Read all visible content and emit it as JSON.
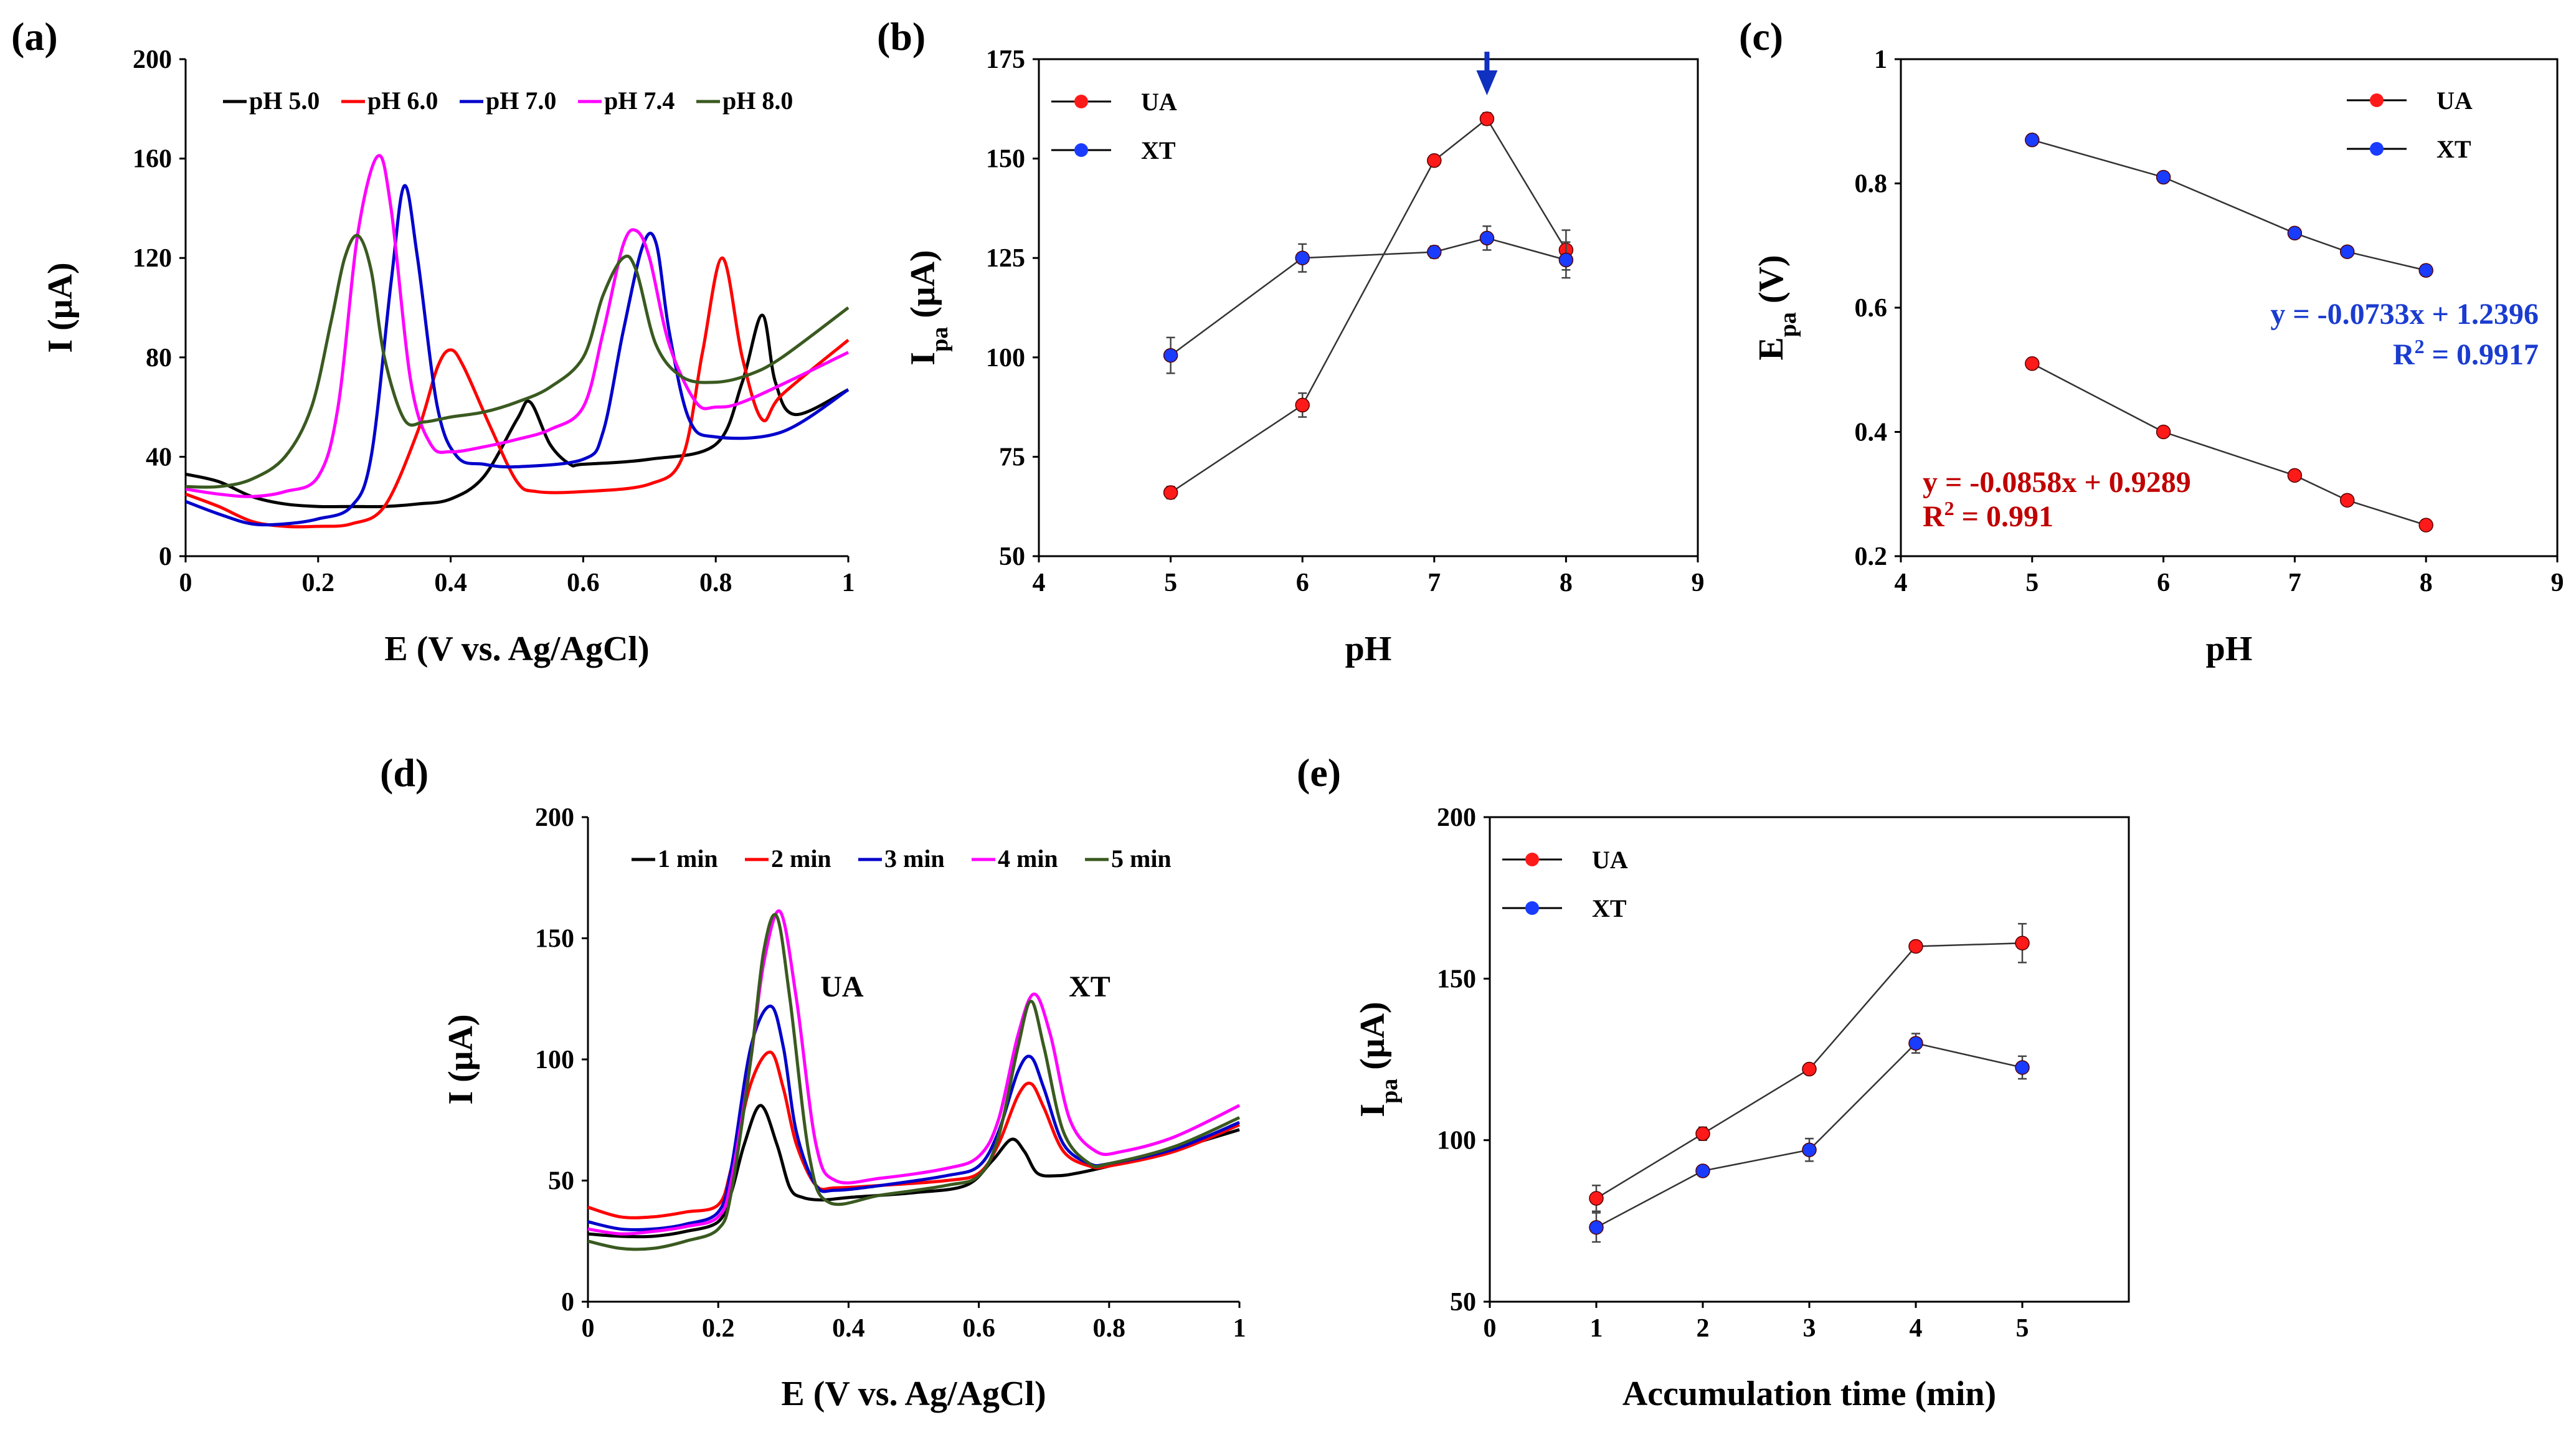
{
  "chart_data": [
    {
      "id": "a",
      "panel_label": "(a)",
      "type": "line",
      "xlabel": "E (V vs. Ag/AgCl)",
      "ylabel": "I (μA)",
      "xlim": [
        0,
        1
      ],
      "ylim": [
        0,
        200
      ],
      "xticks": [
        0,
        0.2,
        0.4,
        0.6,
        0.8,
        1
      ],
      "xtick_labels": [
        "0",
        "0.2",
        "0.4",
        "0.6",
        "0.8",
        "1"
      ],
      "yticks": [
        0,
        40,
        80,
        120,
        160,
        200
      ],
      "ytick_labels": [
        "0",
        "40",
        "80",
        "120",
        "160",
        "200"
      ],
      "legend_position": "top",
      "series": [
        {
          "name": "pH 5.0",
          "color": "#000000",
          "x": [
            0,
            0.05,
            0.1,
            0.15,
            0.2,
            0.25,
            0.3,
            0.35,
            0.4,
            0.45,
            0.5,
            0.52,
            0.55,
            0.58,
            0.6,
            0.7,
            0.8,
            0.84,
            0.87,
            0.89,
            0.92,
            1.0
          ],
          "y": [
            33,
            30,
            24,
            21,
            20,
            20,
            20,
            21,
            23,
            32,
            55,
            62,
            45,
            37,
            37,
            39,
            45,
            70,
            97,
            70,
            57,
            67
          ]
        },
        {
          "name": "pH 6.0",
          "color": "#ff0000",
          "x": [
            0,
            0.05,
            0.1,
            0.15,
            0.2,
            0.25,
            0.3,
            0.35,
            0.38,
            0.4,
            0.42,
            0.46,
            0.5,
            0.53,
            0.6,
            0.7,
            0.75,
            0.78,
            0.81,
            0.84,
            0.87,
            0.9,
            1.0
          ],
          "y": [
            25,
            20,
            14,
            12,
            12,
            13,
            20,
            50,
            76,
            83,
            76,
            52,
            30,
            26,
            26,
            29,
            40,
            82,
            120,
            80,
            55,
            65,
            87
          ]
        },
        {
          "name": "pH 7.0",
          "color": "#0000cc",
          "x": [
            0,
            0.05,
            0.1,
            0.15,
            0.2,
            0.25,
            0.28,
            0.31,
            0.33,
            0.35,
            0.38,
            0.41,
            0.45,
            0.5,
            0.6,
            0.63,
            0.66,
            0.69,
            0.71,
            0.73,
            0.76,
            0.8,
            0.9,
            1.0
          ],
          "y": [
            22,
            17,
            13,
            13,
            15,
            20,
            40,
            110,
            149,
            120,
            60,
            40,
            37,
            36,
            39,
            50,
            90,
            125,
            126,
            90,
            55,
            48,
            50,
            67
          ]
        },
        {
          "name": "pH 7.4",
          "color": "#ff00ff",
          "x": [
            0,
            0.05,
            0.1,
            0.15,
            0.2,
            0.23,
            0.26,
            0.29,
            0.31,
            0.34,
            0.37,
            0.4,
            0.45,
            0.5,
            0.55,
            0.6,
            0.63,
            0.66,
            0.68,
            0.7,
            0.73,
            0.77,
            0.8,
            0.85,
            1.0
          ],
          "y": [
            27,
            25,
            24,
            26,
            32,
            60,
            130,
            161,
            140,
            70,
            45,
            42,
            44,
            47,
            51,
            60,
            90,
            125,
            131,
            120,
            85,
            62,
            60,
            63,
            82
          ]
        },
        {
          "name": "pH 8.0",
          "color": "#3a5a20",
          "x": [
            0,
            0.05,
            0.1,
            0.15,
            0.19,
            0.22,
            0.24,
            0.26,
            0.28,
            0.3,
            0.33,
            0.36,
            0.4,
            0.45,
            0.5,
            0.55,
            0.6,
            0.63,
            0.66,
            0.68,
            0.71,
            0.75,
            0.8,
            0.85,
            0.9,
            1.0
          ],
          "y": [
            28,
            28,
            31,
            40,
            60,
            95,
            120,
            129,
            115,
            80,
            55,
            54,
            56,
            58,
            62,
            68,
            80,
            105,
            120,
            115,
            85,
            72,
            70,
            73,
            80,
            100
          ]
        }
      ]
    },
    {
      "id": "b",
      "panel_label": "(b)",
      "type": "scatter",
      "xlabel": "pH",
      "ylabel_main": "I",
      "ylabel_sub": "pa",
      "ylabel_unit": " (μA)",
      "xlim": [
        4,
        9
      ],
      "ylim": [
        50,
        175
      ],
      "xticks": [
        4,
        5,
        6,
        7,
        8,
        9
      ],
      "xtick_labels": [
        "4",
        "5",
        "6",
        "7",
        "8",
        "9"
      ],
      "yticks": [
        50,
        75,
        100,
        125,
        150,
        175
      ],
      "ytick_labels": [
        "50",
        "75",
        "100",
        "125",
        "150",
        "175"
      ],
      "legend_position": "top-left",
      "arrow_at_x": 7.4,
      "arrow_color": "#1030c0",
      "series": [
        {
          "name": "UA",
          "color": "#ff1a1a",
          "x": [
            5,
            6,
            7,
            7.4,
            8
          ],
          "y": [
            66,
            88,
            149.5,
            160,
            127
          ],
          "err": [
            1.5,
            3,
            1,
            1.5,
            5
          ]
        },
        {
          "name": "XT",
          "color": "#1a3cff",
          "x": [
            5,
            6,
            7,
            7.4,
            8
          ],
          "y": [
            100.5,
            125,
            126.5,
            130,
            124.5
          ],
          "err": [
            4.5,
            3.5,
            1.5,
            3,
            4.5
          ]
        }
      ]
    },
    {
      "id": "c",
      "panel_label": "(c)",
      "type": "scatter",
      "xlabel": "pH",
      "ylabel_main": "E",
      "ylabel_sub": "pa",
      "ylabel_unit": " (V)",
      "xlim": [
        4,
        9
      ],
      "ylim": [
        0.2,
        1.0
      ],
      "xticks": [
        4,
        5,
        6,
        7,
        8,
        9
      ],
      "xtick_labels": [
        "4",
        "5",
        "6",
        "7",
        "8",
        "9"
      ],
      "yticks": [
        0.2,
        0.4,
        0.6,
        0.8,
        1.0
      ],
      "ytick_labels": [
        "0.2",
        "0.4",
        "0.6",
        "0.8",
        "1"
      ],
      "legend_position": "top-right",
      "series": [
        {
          "name": "UA",
          "color": "#ff1a1a",
          "x": [
            5,
            6,
            7,
            7.4,
            8
          ],
          "y": [
            0.51,
            0.4,
            0.33,
            0.29,
            0.25
          ]
        },
        {
          "name": "XT",
          "color": "#1a3cff",
          "x": [
            5,
            6,
            7,
            7.4,
            8
          ],
          "y": [
            0.87,
            0.81,
            0.72,
            0.69,
            0.66
          ]
        }
      ],
      "equations": {
        "xt_fit": "y = -0.0733x + 1.2396",
        "xt_r2_prefix": "R",
        "xt_r2_value": " = 0.9917",
        "ua_fit": "y = -0.0858x + 0.9289",
        "ua_r2_prefix": "R",
        "ua_r2_value": " = 0.991",
        "r2_superscript": "2",
        "xt_color": "#1a3cd0",
        "ua_color": "#c00000"
      }
    },
    {
      "id": "d",
      "panel_label": "(d)",
      "type": "line",
      "xlabel": "E (V vs. Ag/AgCl)",
      "ylabel": "I (μA)",
      "xlim": [
        0,
        1
      ],
      "ylim": [
        0,
        200
      ],
      "xticks": [
        0,
        0.2,
        0.4,
        0.6,
        0.8,
        1
      ],
      "xtick_labels": [
        "0",
        "0.2",
        "0.4",
        "0.6",
        "0.8",
        "1"
      ],
      "yticks": [
        0,
        50,
        100,
        150,
        200
      ],
      "ytick_labels": [
        "0",
        "50",
        "100",
        "150",
        "200"
      ],
      "legend_position": "top",
      "annotations": [
        {
          "text": "UA",
          "x": 0.39,
          "y": 126
        },
        {
          "text": "XT",
          "x": 0.77,
          "y": 126
        }
      ],
      "series": [
        {
          "name": "1 min",
          "color": "#000000",
          "x": [
            0,
            0.05,
            0.1,
            0.15,
            0.2,
            0.22,
            0.24,
            0.265,
            0.29,
            0.31,
            0.33,
            0.36,
            0.4,
            0.5,
            0.58,
            0.62,
            0.65,
            0.67,
            0.69,
            0.72,
            0.75,
            0.8,
            0.9,
            1.0
          ],
          "y": [
            28,
            27,
            27,
            29,
            33,
            45,
            65,
            81,
            65,
            47,
            43,
            42,
            43,
            45,
            48,
            58,
            67,
            62,
            53,
            52,
            53,
            56,
            63,
            71
          ]
        },
        {
          "name": "2 min",
          "color": "#ff0000",
          "x": [
            0,
            0.05,
            0.1,
            0.15,
            0.2,
            0.22,
            0.25,
            0.28,
            0.3,
            0.32,
            0.35,
            0.38,
            0.45,
            0.55,
            0.6,
            0.63,
            0.66,
            0.68,
            0.7,
            0.73,
            0.77,
            0.8,
            0.9,
            1.0
          ],
          "y": [
            39,
            35,
            35,
            37,
            40,
            55,
            90,
            103,
            88,
            65,
            48,
            47,
            48,
            50,
            53,
            65,
            85,
            90,
            80,
            62,
            56,
            56,
            62,
            73
          ]
        },
        {
          "name": "3 min",
          "color": "#0000cc",
          "x": [
            0,
            0.05,
            0.1,
            0.15,
            0.2,
            0.22,
            0.25,
            0.28,
            0.3,
            0.32,
            0.35,
            0.38,
            0.45,
            0.55,
            0.6,
            0.63,
            0.66,
            0.68,
            0.7,
            0.73,
            0.77,
            0.8,
            0.9,
            1.0
          ],
          "y": [
            33,
            30,
            30,
            32,
            37,
            55,
            105,
            122,
            105,
            70,
            48,
            46,
            48,
            52,
            56,
            70,
            95,
            101,
            88,
            65,
            57,
            57,
            63,
            74
          ]
        },
        {
          "name": "4 min",
          "color": "#ff00ff",
          "x": [
            0,
            0.05,
            0.1,
            0.15,
            0.2,
            0.22,
            0.25,
            0.27,
            0.295,
            0.32,
            0.35,
            0.38,
            0.45,
            0.55,
            0.6,
            0.63,
            0.66,
            0.685,
            0.71,
            0.74,
            0.78,
            0.82,
            0.9,
            1.0
          ],
          "y": [
            30,
            28,
            29,
            31,
            35,
            50,
            100,
            140,
            161,
            125,
            65,
            50,
            51,
            55,
            60,
            75,
            110,
            127,
            110,
            75,
            62,
            62,
            68,
            81
          ]
        },
        {
          "name": "5 min",
          "color": "#3a5a20",
          "x": [
            0,
            0.05,
            0.1,
            0.15,
            0.2,
            0.22,
            0.25,
            0.27,
            0.29,
            0.31,
            0.34,
            0.37,
            0.45,
            0.55,
            0.6,
            0.63,
            0.66,
            0.68,
            0.7,
            0.73,
            0.77,
            0.8,
            0.9,
            1.0
          ],
          "y": [
            25,
            22,
            22,
            25,
            30,
            45,
            100,
            145,
            159,
            125,
            60,
            41,
            44,
            48,
            52,
            68,
            105,
            124,
            105,
            70,
            57,
            57,
            64,
            76
          ]
        }
      ]
    },
    {
      "id": "e",
      "panel_label": "(e)",
      "type": "scatter",
      "xlabel": "Accumulation time (min)",
      "ylabel_main": "I",
      "ylabel_sub": "pa",
      "ylabel_unit": " (μA)",
      "xlim": [
        0,
        6
      ],
      "ylim": [
        50,
        200
      ],
      "xticks": [
        0,
        1,
        2,
        3,
        4,
        5
      ],
      "xtick_labels": [
        "0",
        "1",
        "2",
        "3",
        "4",
        "5"
      ],
      "yticks": [
        50,
        100,
        150,
        200
      ],
      "ytick_labels": [
        "50",
        "100",
        "150",
        "200"
      ],
      "legend_position": "top-left",
      "series": [
        {
          "name": "UA",
          "color": "#ff1a1a",
          "x": [
            1,
            2,
            3,
            4,
            5
          ],
          "y": [
            82,
            102,
            122,
            160,
            161
          ],
          "err": [
            4,
            2,
            1.5,
            1,
            6
          ]
        },
        {
          "name": "XT",
          "color": "#1a3cff",
          "x": [
            1,
            2,
            3,
            4,
            5
          ],
          "y": [
            73,
            90.5,
            97,
            130,
            122.5
          ],
          "err": [
            4.5,
            1.5,
            3.5,
            3,
            3.5
          ]
        }
      ]
    }
  ]
}
